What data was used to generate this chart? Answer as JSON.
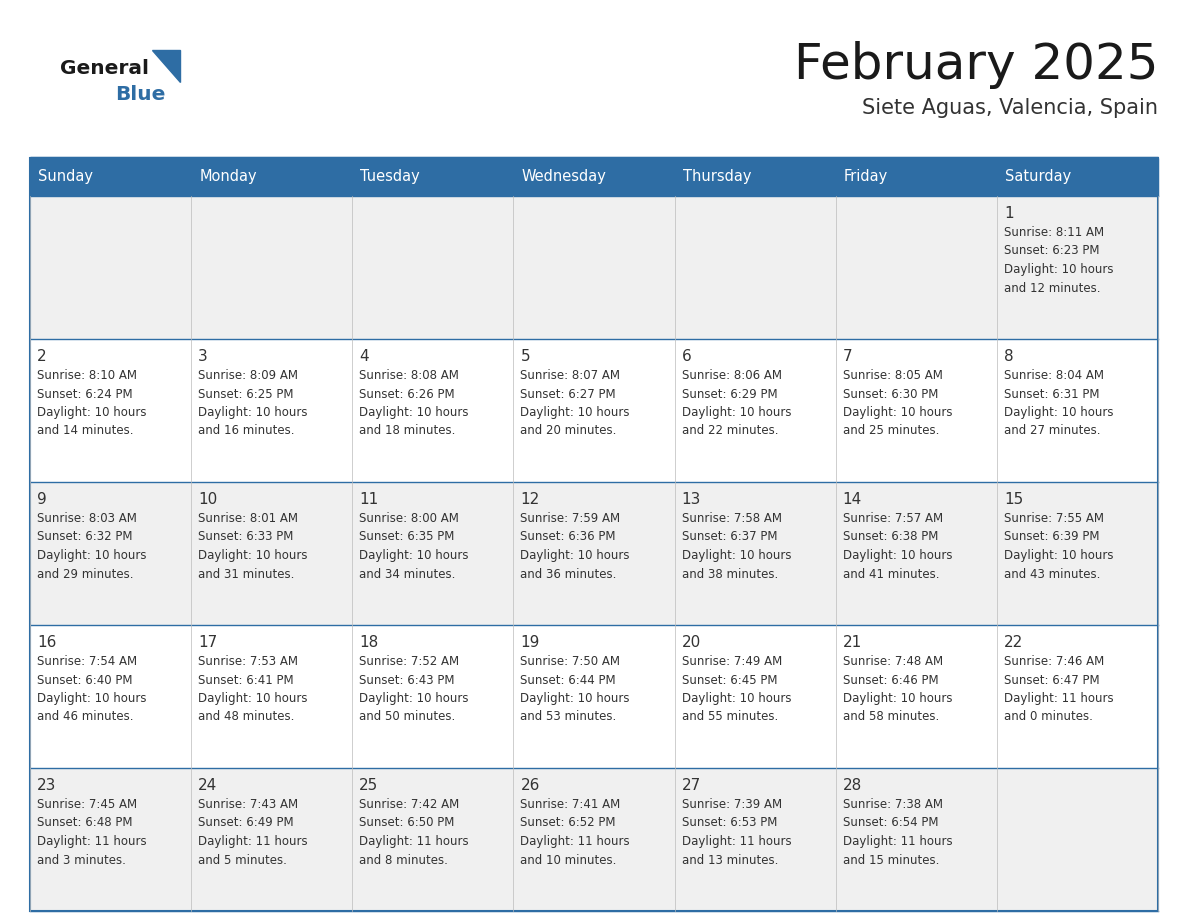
{
  "title": "February 2025",
  "subtitle": "Siete Aguas, Valencia, Spain",
  "header_bg": "#2E6DA4",
  "header_text_color": "#FFFFFF",
  "border_color": "#2E6DA4",
  "row_bg_odd": "#F0F0F0",
  "row_bg_even": "#FFFFFF",
  "day_headers": [
    "Sunday",
    "Monday",
    "Tuesday",
    "Wednesday",
    "Thursday",
    "Friday",
    "Saturday"
  ],
  "title_color": "#1a1a1a",
  "subtitle_color": "#333333",
  "day_num_color": "#333333",
  "cell_text_color": "#333333",
  "logo_text_color": "#1a1a1a",
  "logo_blue_color": "#2E6DA4",
  "weeks": [
    [
      {
        "day": null,
        "info": ""
      },
      {
        "day": null,
        "info": ""
      },
      {
        "day": null,
        "info": ""
      },
      {
        "day": null,
        "info": ""
      },
      {
        "day": null,
        "info": ""
      },
      {
        "day": null,
        "info": ""
      },
      {
        "day": 1,
        "info": "Sunrise: 8:11 AM\nSunset: 6:23 PM\nDaylight: 10 hours\nand 12 minutes."
      }
    ],
    [
      {
        "day": 2,
        "info": "Sunrise: 8:10 AM\nSunset: 6:24 PM\nDaylight: 10 hours\nand 14 minutes."
      },
      {
        "day": 3,
        "info": "Sunrise: 8:09 AM\nSunset: 6:25 PM\nDaylight: 10 hours\nand 16 minutes."
      },
      {
        "day": 4,
        "info": "Sunrise: 8:08 AM\nSunset: 6:26 PM\nDaylight: 10 hours\nand 18 minutes."
      },
      {
        "day": 5,
        "info": "Sunrise: 8:07 AM\nSunset: 6:27 PM\nDaylight: 10 hours\nand 20 minutes."
      },
      {
        "day": 6,
        "info": "Sunrise: 8:06 AM\nSunset: 6:29 PM\nDaylight: 10 hours\nand 22 minutes."
      },
      {
        "day": 7,
        "info": "Sunrise: 8:05 AM\nSunset: 6:30 PM\nDaylight: 10 hours\nand 25 minutes."
      },
      {
        "day": 8,
        "info": "Sunrise: 8:04 AM\nSunset: 6:31 PM\nDaylight: 10 hours\nand 27 minutes."
      }
    ],
    [
      {
        "day": 9,
        "info": "Sunrise: 8:03 AM\nSunset: 6:32 PM\nDaylight: 10 hours\nand 29 minutes."
      },
      {
        "day": 10,
        "info": "Sunrise: 8:01 AM\nSunset: 6:33 PM\nDaylight: 10 hours\nand 31 minutes."
      },
      {
        "day": 11,
        "info": "Sunrise: 8:00 AM\nSunset: 6:35 PM\nDaylight: 10 hours\nand 34 minutes."
      },
      {
        "day": 12,
        "info": "Sunrise: 7:59 AM\nSunset: 6:36 PM\nDaylight: 10 hours\nand 36 minutes."
      },
      {
        "day": 13,
        "info": "Sunrise: 7:58 AM\nSunset: 6:37 PM\nDaylight: 10 hours\nand 38 minutes."
      },
      {
        "day": 14,
        "info": "Sunrise: 7:57 AM\nSunset: 6:38 PM\nDaylight: 10 hours\nand 41 minutes."
      },
      {
        "day": 15,
        "info": "Sunrise: 7:55 AM\nSunset: 6:39 PM\nDaylight: 10 hours\nand 43 minutes."
      }
    ],
    [
      {
        "day": 16,
        "info": "Sunrise: 7:54 AM\nSunset: 6:40 PM\nDaylight: 10 hours\nand 46 minutes."
      },
      {
        "day": 17,
        "info": "Sunrise: 7:53 AM\nSunset: 6:41 PM\nDaylight: 10 hours\nand 48 minutes."
      },
      {
        "day": 18,
        "info": "Sunrise: 7:52 AM\nSunset: 6:43 PM\nDaylight: 10 hours\nand 50 minutes."
      },
      {
        "day": 19,
        "info": "Sunrise: 7:50 AM\nSunset: 6:44 PM\nDaylight: 10 hours\nand 53 minutes."
      },
      {
        "day": 20,
        "info": "Sunrise: 7:49 AM\nSunset: 6:45 PM\nDaylight: 10 hours\nand 55 minutes."
      },
      {
        "day": 21,
        "info": "Sunrise: 7:48 AM\nSunset: 6:46 PM\nDaylight: 10 hours\nand 58 minutes."
      },
      {
        "day": 22,
        "info": "Sunrise: 7:46 AM\nSunset: 6:47 PM\nDaylight: 11 hours\nand 0 minutes."
      }
    ],
    [
      {
        "day": 23,
        "info": "Sunrise: 7:45 AM\nSunset: 6:48 PM\nDaylight: 11 hours\nand 3 minutes."
      },
      {
        "day": 24,
        "info": "Sunrise: 7:43 AM\nSunset: 6:49 PM\nDaylight: 11 hours\nand 5 minutes."
      },
      {
        "day": 25,
        "info": "Sunrise: 7:42 AM\nSunset: 6:50 PM\nDaylight: 11 hours\nand 8 minutes."
      },
      {
        "day": 26,
        "info": "Sunrise: 7:41 AM\nSunset: 6:52 PM\nDaylight: 11 hours\nand 10 minutes."
      },
      {
        "day": 27,
        "info": "Sunrise: 7:39 AM\nSunset: 6:53 PM\nDaylight: 11 hours\nand 13 minutes."
      },
      {
        "day": 28,
        "info": "Sunrise: 7:38 AM\nSunset: 6:54 PM\nDaylight: 11 hours\nand 15 minutes."
      },
      {
        "day": null,
        "info": ""
      }
    ]
  ]
}
